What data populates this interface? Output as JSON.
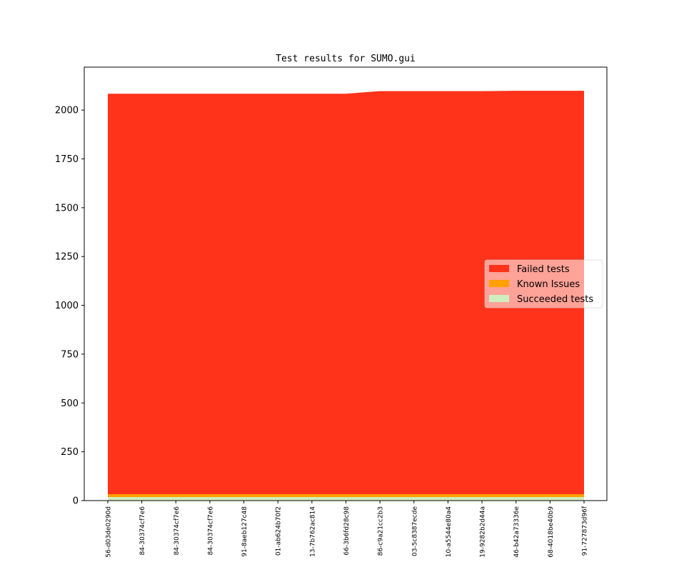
{
  "chart_data": {
    "type": "area",
    "stacked": true,
    "title": "Test results for SUMO.gui",
    "xlabel": "",
    "ylabel": "",
    "ylim": [
      0,
      2220
    ],
    "yticks": [
      0,
      250,
      500,
      750,
      1000,
      1250,
      1500,
      1750,
      2000
    ],
    "categories": [
      "56-d03de0290d",
      "84-30374cf7e6",
      "84-30374cf7e6",
      "84-30374cf7e6",
      "91-8aeb127c48",
      "01-ab624b70f2",
      "13-7b762ac814",
      "66-3b6fd28c98",
      "86-c9a21cc2b3",
      "03-5c8387ecde",
      "10-a5544e80a4",
      "19-9282b2d44a",
      "46-b42a73336e",
      "68-4018be40b9",
      "91-727873d96f"
    ],
    "series": [
      {
        "name": "Succeeded tests",
        "color": "#cfeec0",
        "values": [
          18,
          18,
          18,
          18,
          18,
          18,
          18,
          18,
          18,
          18,
          18,
          18,
          18,
          18,
          18
        ]
      },
      {
        "name": "Known Issues",
        "color": "#ffa000",
        "values": [
          15,
          15,
          15,
          15,
          15,
          15,
          15,
          15,
          15,
          15,
          15,
          15,
          15,
          15,
          15
        ]
      },
      {
        "name": "Failed tests",
        "color": "#ff321a",
        "values": [
          2051,
          2051,
          2051,
          2051,
          2051,
          2051,
          2051,
          2051,
          2064,
          2064,
          2064,
          2064,
          2066,
          2066,
          2066
        ]
      }
    ],
    "legend": {
      "placement": "center-right",
      "order": [
        "Failed tests",
        "Known Issues",
        "Succeeded tests"
      ]
    },
    "grid": false
  }
}
